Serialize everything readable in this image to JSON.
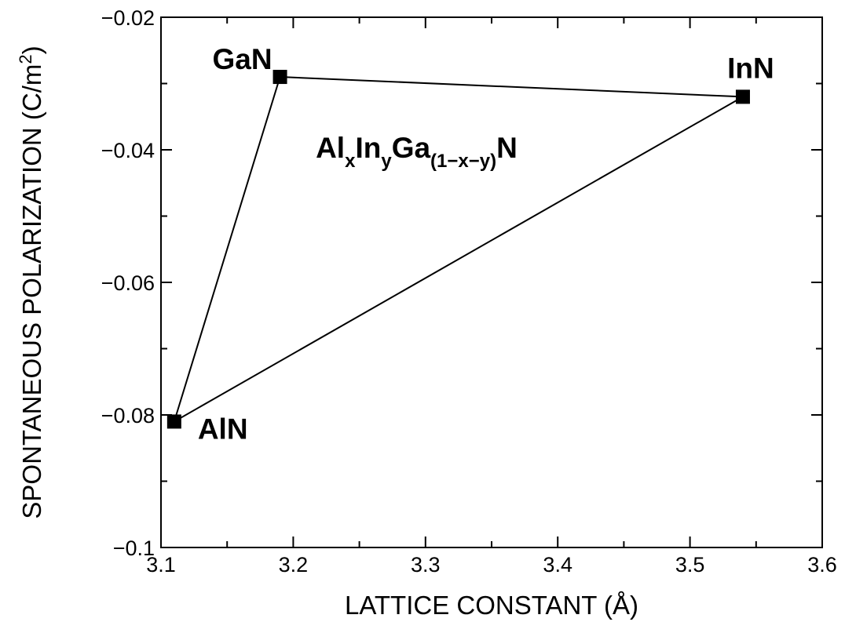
{
  "chart_data": {
    "type": "scatter",
    "title": "",
    "xlabel": "LATTICE CONSTANT (Å)",
    "ylabel": "SPONTANEOUS POLARIZATION (C/m",
    "ylabel_sup": "2",
    "ylabel_close": ")",
    "xlim": [
      3.1,
      3.6
    ],
    "ylim": [
      -0.1,
      -0.02
    ],
    "x_ticks": [
      3.1,
      3.2,
      3.3,
      3.4,
      3.5,
      3.6
    ],
    "x_tick_labels": [
      "3.1",
      "3.2",
      "3.3",
      "3.4",
      "3.5",
      "3.6"
    ],
    "y_ticks": [
      -0.02,
      -0.04,
      -0.06,
      -0.08,
      -0.1
    ],
    "y_tick_labels": [
      "−0.02",
      "−0.04",
      "−0.06",
      "−0.08",
      "−0.1"
    ],
    "grid": false,
    "points": [
      {
        "label": "GaN",
        "x": 3.19,
        "y": -0.029
      },
      {
        "label": "InN",
        "x": 3.54,
        "y": -0.032
      },
      {
        "label": "AlN",
        "x": 3.11,
        "y": -0.081
      }
    ],
    "polygon_order": [
      "GaN",
      "InN",
      "AlN"
    ],
    "annotation": {
      "parts": [
        {
          "text": "Al",
          "style": "base"
        },
        {
          "text": "x",
          "style": "sub"
        },
        {
          "text": "In",
          "style": "base"
        },
        {
          "text": "y",
          "style": "sub"
        },
        {
          "text": "Ga",
          "style": "base"
        },
        {
          "text": "(1−x−y)",
          "style": "sub"
        },
        {
          "text": "N",
          "style": "base"
        }
      ],
      "x": 3.22,
      "y": -0.04
    }
  }
}
